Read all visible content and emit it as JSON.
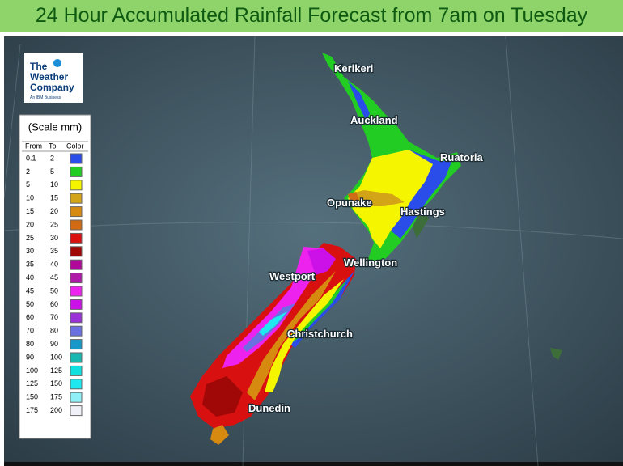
{
  "title": "24 Hour Accumulated Rainfall Forecast from 7am on Tuesday",
  "logo": {
    "line1": "The",
    "line2": "Weather",
    "line3": "Company",
    "tagline": "An IBM Business"
  },
  "legend": {
    "title": "(Scale mm)",
    "headers": [
      "From",
      "To",
      "Color"
    ],
    "rows": [
      {
        "from": 0.1,
        "to": 2,
        "color": "#2a4dea"
      },
      {
        "from": 2,
        "to": 5,
        "color": "#22cc22"
      },
      {
        "from": 5,
        "to": 10,
        "color": "#f5f500"
      },
      {
        "from": 10,
        "to": 15,
        "color": "#d4a418"
      },
      {
        "from": 15,
        "to": 20,
        "color": "#d68a10"
      },
      {
        "from": 20,
        "to": 25,
        "color": "#d06a14"
      },
      {
        "from": 25,
        "to": 30,
        "color": "#d81010"
      },
      {
        "from": 30,
        "to": 35,
        "color": "#a00808"
      },
      {
        "from": 35,
        "to": 40,
        "color": "#b0089a"
      },
      {
        "from": 40,
        "to": 45,
        "color": "#b01aa8"
      },
      {
        "from": 45,
        "to": 50,
        "color": "#ee22ee"
      },
      {
        "from": 50,
        "to": 60,
        "color": "#cc10e8"
      },
      {
        "from": 60,
        "to": 70,
        "color": "#9a30d8"
      },
      {
        "from": 70,
        "to": 80,
        "color": "#6a70e0"
      },
      {
        "from": 80,
        "to": 90,
        "color": "#1898c8"
      },
      {
        "from": 90,
        "to": 100,
        "color": "#18b8b0"
      },
      {
        "from": 100,
        "to": 125,
        "color": "#10e0e0"
      },
      {
        "from": 125,
        "to": 150,
        "color": "#20e8f0"
      },
      {
        "from": 150,
        "to": 175,
        "color": "#90f0f8"
      },
      {
        "from": 175,
        "to": 200,
        "color": "#f0f0f8"
      }
    ]
  },
  "cities": [
    "Kerikeri",
    "Auckland",
    "Ruatoria",
    "Opunake",
    "Hastings",
    "Wellington",
    "Westport",
    "Christchurch",
    "Dunedin"
  ]
}
